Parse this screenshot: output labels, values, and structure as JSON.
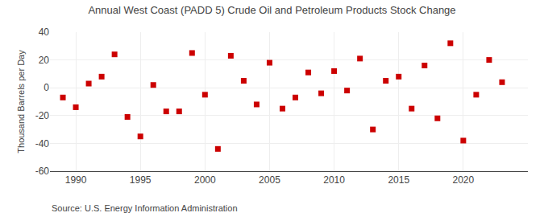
{
  "chart_data": {
    "type": "scatter",
    "title": "Annual West Coast (PADD 5) Crude Oil and Petroleum Products Stock Change",
    "ylabel": "Thousand Barrels per Day",
    "annotations": [
      "Source: U.S. Energy Information Administration"
    ],
    "x": [
      1989,
      1990,
      1991,
      1992,
      1993,
      1994,
      1995,
      1996,
      1997,
      1998,
      1999,
      2000,
      2001,
      2002,
      2003,
      2004,
      2005,
      2006,
      2007,
      2008,
      2009,
      2010,
      2011,
      2012,
      2013,
      2014,
      2015,
      2016,
      2017,
      2018,
      2019,
      2020,
      2021,
      2022,
      2023
    ],
    "values": [
      -7,
      -14,
      3,
      8,
      24,
      -21,
      -35,
      2,
      -17,
      -17,
      25,
      -5,
      -44,
      23,
      5,
      -12,
      18,
      -15,
      -7,
      11,
      -4,
      12,
      -2,
      21,
      -30,
      5,
      8,
      -15,
      16,
      -22,
      32,
      -38,
      -5,
      20,
      4
    ],
    "color": "#cc0000",
    "marker": "square",
    "xlim": [
      1988,
      2025
    ],
    "ylim": [
      -60,
      40
    ],
    "xticks": [
      1990,
      1995,
      2000,
      2005,
      2010,
      2015,
      2020
    ],
    "yticks": [
      -60,
      -40,
      -20,
      0,
      20,
      40
    ],
    "grid": true
  }
}
